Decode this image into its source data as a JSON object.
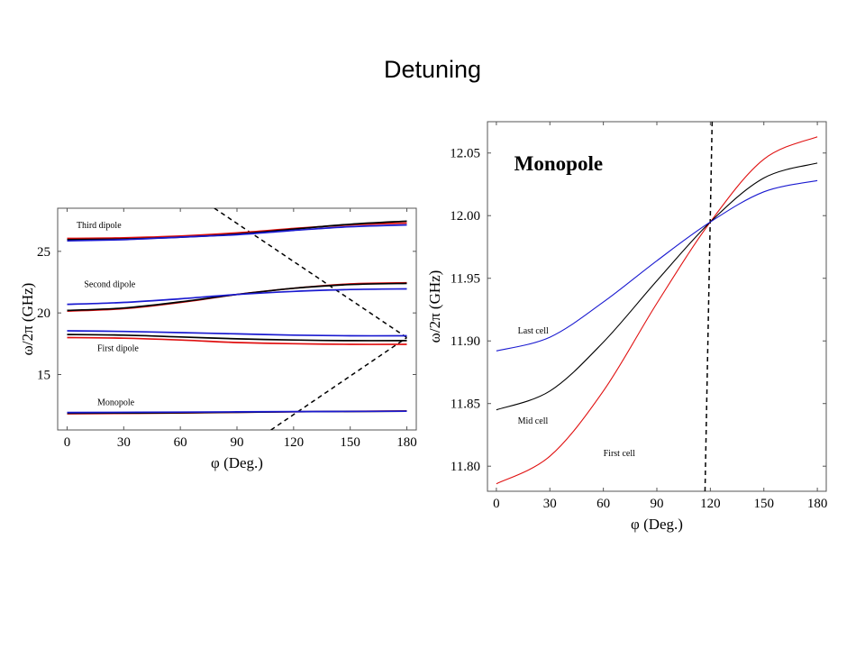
{
  "slide_title": "Detuning",
  "colors": {
    "red": "#e01010",
    "black": "#000000",
    "blue": "#1a1ad0"
  },
  "chart_data": [
    {
      "type": "line",
      "xlabel": "φ (Deg.)",
      "ylabel": "ω/2π (GHz)",
      "xlim": [
        -5,
        185
      ],
      "ylim": [
        10.5,
        28.5
      ],
      "xticks": [
        0,
        30,
        60,
        90,
        120,
        150,
        180
      ],
      "yticks": [
        15,
        20,
        25
      ],
      "annotations": [
        {
          "text": "Third dipole",
          "x": 5,
          "y": 26.9
        },
        {
          "text": "Second dipole",
          "x": 9,
          "y": 22.1
        },
        {
          "text": "First dipole",
          "x": 16,
          "y": 16.9
        },
        {
          "text": "Monopole",
          "x": 16,
          "y": 12.5
        }
      ],
      "dashed_lines": [
        {
          "x": [
            78,
            180
          ],
          "y": [
            28.5,
            18.0
          ]
        },
        {
          "x": [
            108,
            180
          ],
          "y": [
            10.5,
            18.0
          ]
        }
      ],
      "series": [
        {
          "color": "red",
          "x": [
            0,
            30,
            60,
            90,
            120,
            150,
            180
          ],
          "y": [
            26.05,
            26.1,
            26.25,
            26.5,
            26.85,
            27.15,
            27.3
          ]
        },
        {
          "color": "black",
          "x": [
            0,
            30,
            60,
            90,
            120,
            150,
            180
          ],
          "y": [
            25.95,
            26.0,
            26.15,
            26.4,
            26.8,
            27.2,
            27.45
          ]
        },
        {
          "color": "blue",
          "x": [
            0,
            30,
            60,
            90,
            120,
            150,
            180
          ],
          "y": [
            25.85,
            25.95,
            26.15,
            26.35,
            26.7,
            27.0,
            27.15
          ]
        },
        {
          "color": "red",
          "x": [
            0,
            30,
            60,
            90,
            120,
            150,
            180
          ],
          "y": [
            20.15,
            20.35,
            20.85,
            21.5,
            22.0,
            22.35,
            22.45
          ]
        },
        {
          "color": "black",
          "x": [
            0,
            30,
            60,
            90,
            120,
            150,
            180
          ],
          "y": [
            20.2,
            20.4,
            20.9,
            21.5,
            22.0,
            22.3,
            22.4
          ]
        },
        {
          "color": "blue",
          "x": [
            0,
            30,
            60,
            90,
            120,
            150,
            180
          ],
          "y": [
            20.7,
            20.85,
            21.15,
            21.5,
            21.75,
            21.9,
            21.95
          ]
        },
        {
          "color": "blue",
          "x": [
            0,
            30,
            60,
            90,
            120,
            150,
            180
          ],
          "y": [
            18.55,
            18.5,
            18.4,
            18.3,
            18.2,
            18.15,
            18.15
          ]
        },
        {
          "color": "black",
          "x": [
            0,
            30,
            60,
            90,
            120,
            150,
            180
          ],
          "y": [
            18.25,
            18.2,
            18.05,
            17.9,
            17.8,
            17.75,
            17.75
          ]
        },
        {
          "color": "red",
          "x": [
            0,
            30,
            60,
            90,
            120,
            150,
            180
          ],
          "y": [
            18.0,
            17.95,
            17.8,
            17.6,
            17.5,
            17.45,
            17.45
          ]
        },
        {
          "color": "red",
          "x": [
            0,
            60,
            120,
            180
          ],
          "y": [
            11.82,
            11.88,
            11.98,
            12.04
          ]
        },
        {
          "color": "black",
          "x": [
            0,
            60,
            120,
            180
          ],
          "y": [
            11.86,
            11.9,
            11.98,
            12.03
          ]
        },
        {
          "color": "blue",
          "x": [
            0,
            60,
            120,
            180
          ],
          "y": [
            11.92,
            11.95,
            11.99,
            12.02
          ]
        }
      ]
    },
    {
      "type": "line",
      "title": "Monopole",
      "xlabel": "φ (Deg.)",
      "ylabel": "ω/2π (GHz)",
      "xlim": [
        -5,
        185
      ],
      "ylim": [
        11.78,
        12.075
      ],
      "xticks": [
        0,
        30,
        60,
        90,
        120,
        150,
        180
      ],
      "yticks": [
        "11.80",
        "11.85",
        "11.90",
        "11.95",
        "12.00",
        "12.05"
      ],
      "annotations": [
        {
          "text": "Last cell",
          "x": 12,
          "y": 11.906
        },
        {
          "text": "Mid cell",
          "x": 12,
          "y": 11.834
        },
        {
          "text": "First  cell",
          "x": 60,
          "y": 11.808
        }
      ],
      "dashed_lines": [
        {
          "x": [
            117,
            121
          ],
          "y": [
            11.78,
            12.075
          ]
        }
      ],
      "series": [
        {
          "name": "First  cell",
          "color": "red",
          "x": [
            0,
            30,
            60,
            90,
            120,
            150,
            180
          ],
          "y": [
            11.786,
            11.808,
            11.86,
            11.93,
            11.995,
            12.045,
            12.063
          ]
        },
        {
          "name": "Mid cell",
          "color": "black",
          "x": [
            0,
            30,
            60,
            90,
            120,
            150,
            180
          ],
          "y": [
            11.845,
            11.86,
            11.899,
            11.948,
            11.995,
            12.03,
            12.042
          ]
        },
        {
          "name": "Last cell",
          "color": "blue",
          "x": [
            0,
            30,
            60,
            90,
            120,
            150,
            180
          ],
          "y": [
            11.892,
            11.903,
            11.931,
            11.964,
            11.995,
            12.019,
            12.028
          ]
        }
      ]
    }
  ]
}
